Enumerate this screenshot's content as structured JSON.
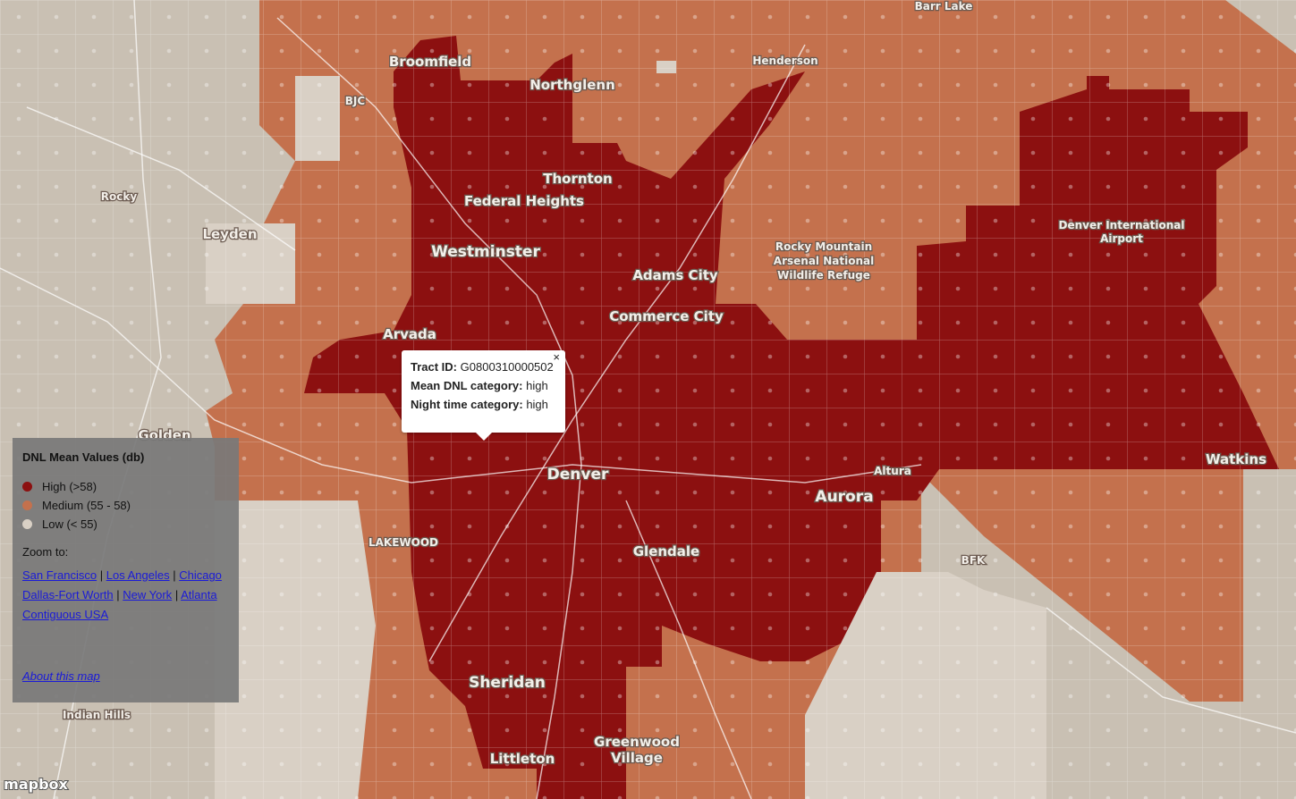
{
  "places": [
    "Barr Lake",
    "Broomfield",
    "Henderson",
    "BJC",
    "Northglenn",
    "Thornton",
    "Federal Heights",
    "Rocky",
    "Leyden",
    "Westminster",
    "Adams City",
    "Commerce City",
    "Arvada",
    "Golden",
    "Denver",
    "Aurora",
    "Altura",
    "Watkins",
    "BFK",
    "LAKEWOOD",
    "Glendale",
    "Sheridan",
    "Littleton",
    "Indian Hills"
  ],
  "multiline_places": [
    {
      "lines": [
        "Rocky Mountain",
        "Arsenal National",
        "Wildlife Refuge"
      ]
    },
    {
      "lines": [
        "Denver International",
        "Airport"
      ]
    },
    {
      "lines": [
        "Greenwood",
        "Village"
      ]
    }
  ],
  "popup": {
    "close": "×",
    "rows": [
      {
        "label": "Tract ID:",
        "value": "G0800310000502"
      },
      {
        "label": "Mean DNL category:",
        "value": "high"
      },
      {
        "label": "Night time category:",
        "value": "high"
      }
    ]
  },
  "legend": {
    "title": "DNL Mean Values (db)",
    "items": [
      {
        "label": "High (>58)",
        "color": "#8c1010"
      },
      {
        "label": "Medium (55 - 58)",
        "color": "#c4714d"
      },
      {
        "label": "Low (< 55)",
        "color": "#d9d0c5"
      }
    ],
    "zoom_label": "Zoom to:",
    "links": [
      "San Francisco",
      "Los Angeles",
      "Chicago",
      "Dallas-Fort Worth",
      "New York",
      "Atlanta",
      "Contiguous USA"
    ],
    "separator": "|",
    "about": "About this map"
  },
  "attribution": "mapbox"
}
